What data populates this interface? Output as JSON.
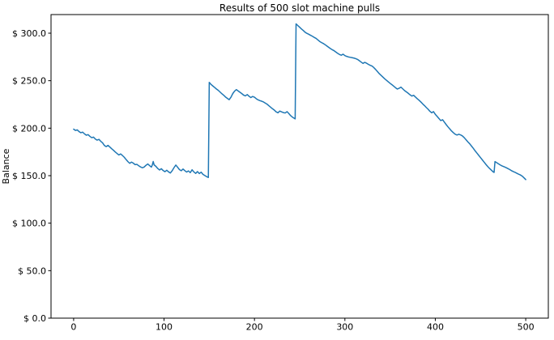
{
  "figure": {
    "title": "Results of 500 slot machine pulls",
    "ylabel": "Balance"
  },
  "chart_data": {
    "type": "line",
    "title": "Results of 500 slot machine pulls",
    "xlabel": "",
    "ylabel": "Balance",
    "legend": null,
    "grid": false,
    "line_color": "#1f77b4",
    "spine_color": "#000000",
    "background_color": "#ffffff",
    "xlim": [
      -25,
      525
    ],
    "ylim": [
      0,
      319.6
    ],
    "x_ticks": [
      {
        "value": 0,
        "label": "0"
      },
      {
        "value": 100,
        "label": "100"
      },
      {
        "value": 200,
        "label": "200"
      },
      {
        "value": 300,
        "label": "300"
      },
      {
        "value": 400,
        "label": "400"
      },
      {
        "value": 500,
        "label": "500"
      }
    ],
    "y_ticks": [
      {
        "value": 0,
        "label": "$ 0.0"
      },
      {
        "value": 50,
        "label": "$ 50.0"
      },
      {
        "value": 100,
        "label": "$ 100.0"
      },
      {
        "value": 150,
        "label": "$ 150.0"
      },
      {
        "value": 200,
        "label": "$ 200.0"
      },
      {
        "value": 250,
        "label": "$ 250.0"
      },
      {
        "value": 300,
        "label": "$ 300.0"
      }
    ],
    "points": [
      [
        0,
        199
      ],
      [
        2,
        197.6
      ],
      [
        4,
        198.2
      ],
      [
        6,
        196.4
      ],
      [
        8,
        195.2
      ],
      [
        10,
        195.8
      ],
      [
        12,
        194
      ],
      [
        14,
        192.6
      ],
      [
        16,
        193.2
      ],
      [
        18,
        191.4
      ],
      [
        20,
        190
      ],
      [
        22,
        190.6
      ],
      [
        24,
        188.6
      ],
      [
        26,
        187.4
      ],
      [
        28,
        188.2
      ],
      [
        30,
        186.2
      ],
      [
        32,
        184.6
      ],
      [
        34,
        181.8
      ],
      [
        36,
        180.6
      ],
      [
        38,
        181.9
      ],
      [
        40,
        180.2
      ],
      [
        42,
        178.4
      ],
      [
        44,
        176.8
      ],
      [
        46,
        175
      ],
      [
        48,
        173.4
      ],
      [
        50,
        171.8
      ],
      [
        52,
        172.9
      ],
      [
        54,
        171.2
      ],
      [
        56,
        169.4
      ],
      [
        58,
        167
      ],
      [
        60,
        164.8
      ],
      [
        62,
        163
      ],
      [
        64,
        164.3
      ],
      [
        66,
        163.2
      ],
      [
        68,
        161.6
      ],
      [
        70,
        161.9
      ],
      [
        72,
        160.4
      ],
      [
        74,
        159.2
      ],
      [
        76,
        158.3
      ],
      [
        78,
        159.1
      ],
      [
        80,
        160.9
      ],
      [
        82,
        162.3
      ],
      [
        84,
        160.6
      ],
      [
        86,
        159
      ],
      [
        87,
        161.2
      ],
      [
        88,
        164.9
      ],
      [
        89,
        161.4
      ],
      [
        91,
        159.8
      ],
      [
        93,
        157.6
      ],
      [
        95,
        156
      ],
      [
        97,
        157.3
      ],
      [
        99,
        155.4
      ],
      [
        101,
        154.2
      ],
      [
        103,
        155.7
      ],
      [
        105,
        154
      ],
      [
        107,
        152.8
      ],
      [
        109,
        155.2
      ],
      [
        111,
        158.4
      ],
      [
        113,
        161.2
      ],
      [
        115,
        158.9
      ],
      [
        117,
        156.4
      ],
      [
        119,
        155.2
      ],
      [
        121,
        157
      ],
      [
        123,
        155.3
      ],
      [
        125,
        153.8
      ],
      [
        127,
        155
      ],
      [
        129,
        153.2
      ],
      [
        131,
        156.2
      ],
      [
        133,
        153.9
      ],
      [
        135,
        152.4
      ],
      [
        137,
        154.3
      ],
      [
        139,
        152.2
      ],
      [
        141,
        153.7
      ],
      [
        143,
        151.4
      ],
      [
        145,
        150.2
      ],
      [
        147,
        149
      ],
      [
        149,
        148.1
      ],
      [
        150,
        248.2
      ],
      [
        152,
        246
      ],
      [
        154,
        244.4
      ],
      [
        156,
        242.8
      ],
      [
        158,
        241.2
      ],
      [
        160,
        239.8
      ],
      [
        162,
        238
      ],
      [
        164,
        236.2
      ],
      [
        166,
        234.6
      ],
      [
        168,
        232.8
      ],
      [
        170,
        231.4
      ],
      [
        172,
        230
      ],
      [
        174,
        232.6
      ],
      [
        176,
        236.4
      ],
      [
        178,
        239
      ],
      [
        180,
        240.6
      ],
      [
        182,
        239.2
      ],
      [
        184,
        237.8
      ],
      [
        186,
        236.4
      ],
      [
        188,
        234.8
      ],
      [
        190,
        234
      ],
      [
        192,
        235.4
      ],
      [
        194,
        233.6
      ],
      [
        196,
        232.2
      ],
      [
        198,
        233.4
      ],
      [
        200,
        232.6
      ],
      [
        202,
        231
      ],
      [
        204,
        229.8
      ],
      [
        206,
        229
      ],
      [
        208,
        228.4
      ],
      [
        210,
        227.6
      ],
      [
        212,
        226.4
      ],
      [
        214,
        225.2
      ],
      [
        216,
        223.6
      ],
      [
        218,
        222
      ],
      [
        220,
        220.4
      ],
      [
        222,
        219
      ],
      [
        224,
        217.2
      ],
      [
        226,
        216.2
      ],
      [
        228,
        218
      ],
      [
        230,
        217.2
      ],
      [
        232,
        216.4
      ],
      [
        234,
        216
      ],
      [
        236,
        217.4
      ],
      [
        238,
        215.4
      ],
      [
        240,
        213.2
      ],
      [
        242,
        211.6
      ],
      [
        244,
        210.4
      ],
      [
        245,
        209.8
      ],
      [
        246,
        309.8
      ],
      [
        248,
        308
      ],
      [
        250,
        306.2
      ],
      [
        252,
        304.4
      ],
      [
        254,
        302.8
      ],
      [
        256,
        301
      ],
      [
        258,
        299.8
      ],
      [
        260,
        298.9
      ],
      [
        262,
        297.8
      ],
      [
        264,
        296.8
      ],
      [
        266,
        295.6
      ],
      [
        268,
        294.6
      ],
      [
        270,
        293
      ],
      [
        272,
        291.4
      ],
      [
        274,
        290.2
      ],
      [
        276,
        289.2
      ],
      [
        278,
        288
      ],
      [
        280,
        286.6
      ],
      [
        282,
        285.2
      ],
      [
        284,
        283.8
      ],
      [
        286,
        282.6
      ],
      [
        288,
        281.6
      ],
      [
        290,
        280.2
      ],
      [
        292,
        278.8
      ],
      [
        294,
        277.6
      ],
      [
        296,
        276.8
      ],
      [
        298,
        277.9
      ],
      [
        300,
        276.4
      ],
      [
        302,
        275.6
      ],
      [
        304,
        275
      ],
      [
        306,
        274.6
      ],
      [
        308,
        274.2
      ],
      [
        310,
        273.8
      ],
      [
        312,
        273.2
      ],
      [
        314,
        272.4
      ],
      [
        316,
        271
      ],
      [
        318,
        269.6
      ],
      [
        320,
        268.2
      ],
      [
        322,
        269.3
      ],
      [
        324,
        268.4
      ],
      [
        326,
        267.2
      ],
      [
        328,
        266.2
      ],
      [
        330,
        265.4
      ],
      [
        332,
        263.8
      ],
      [
        334,
        261.8
      ],
      [
        336,
        259.6
      ],
      [
        338,
        257.4
      ],
      [
        340,
        255.6
      ],
      [
        342,
        253.8
      ],
      [
        344,
        252
      ],
      [
        346,
        250.4
      ],
      [
        348,
        248.8
      ],
      [
        350,
        247.2
      ],
      [
        352,
        245.8
      ],
      [
        354,
        244.2
      ],
      [
        356,
        242.6
      ],
      [
        358,
        241.2
      ],
      [
        360,
        242
      ],
      [
        362,
        243.2
      ],
      [
        364,
        241.4
      ],
      [
        366,
        239.6
      ],
      [
        368,
        238.2
      ],
      [
        370,
        236.8
      ],
      [
        372,
        235.2
      ],
      [
        374,
        233.8
      ],
      [
        376,
        234.6
      ],
      [
        378,
        232.8
      ],
      [
        380,
        231
      ],
      [
        382,
        229.4
      ],
      [
        384,
        227.6
      ],
      [
        386,
        225.6
      ],
      [
        388,
        223.8
      ],
      [
        390,
        221.8
      ],
      [
        392,
        220
      ],
      [
        394,
        217.8
      ],
      [
        396,
        216.2
      ],
      [
        398,
        217.4
      ],
      [
        400,
        214.6
      ],
      [
        402,
        212.4
      ],
      [
        404,
        210.2
      ],
      [
        406,
        208
      ],
      [
        408,
        208.9
      ],
      [
        410,
        206.4
      ],
      [
        412,
        203.8
      ],
      [
        414,
        201.4
      ],
      [
        416,
        199.2
      ],
      [
        418,
        197
      ],
      [
        420,
        195.2
      ],
      [
        422,
        193.6
      ],
      [
        424,
        192.8
      ],
      [
        426,
        193.6
      ],
      [
        428,
        192.9
      ],
      [
        430,
        191.8
      ],
      [
        432,
        190
      ],
      [
        434,
        187.8
      ],
      [
        436,
        185.6
      ],
      [
        438,
        183.6
      ],
      [
        440,
        181.2
      ],
      [
        442,
        178.8
      ],
      [
        444,
        176.2
      ],
      [
        446,
        173.8
      ],
      [
        448,
        171.4
      ],
      [
        450,
        169
      ],
      [
        452,
        166.6
      ],
      [
        454,
        164.2
      ],
      [
        456,
        161.8
      ],
      [
        458,
        159.6
      ],
      [
        460,
        157.6
      ],
      [
        462,
        155.8
      ],
      [
        464,
        154
      ],
      [
        465,
        153.4
      ],
      [
        466,
        164.8
      ],
      [
        468,
        163.6
      ],
      [
        470,
        162.4
      ],
      [
        472,
        161.2
      ],
      [
        474,
        160.2
      ],
      [
        476,
        159.4
      ],
      [
        478,
        158.6
      ],
      [
        480,
        157.6
      ],
      [
        482,
        156.6
      ],
      [
        484,
        155.4
      ],
      [
        486,
        154.4
      ],
      [
        488,
        153.6
      ],
      [
        490,
        152.6
      ],
      [
        492,
        151.6
      ],
      [
        494,
        150.8
      ],
      [
        496,
        149.6
      ],
      [
        498,
        147.8
      ],
      [
        500,
        145.9
      ]
    ]
  },
  "layout_note": ""
}
